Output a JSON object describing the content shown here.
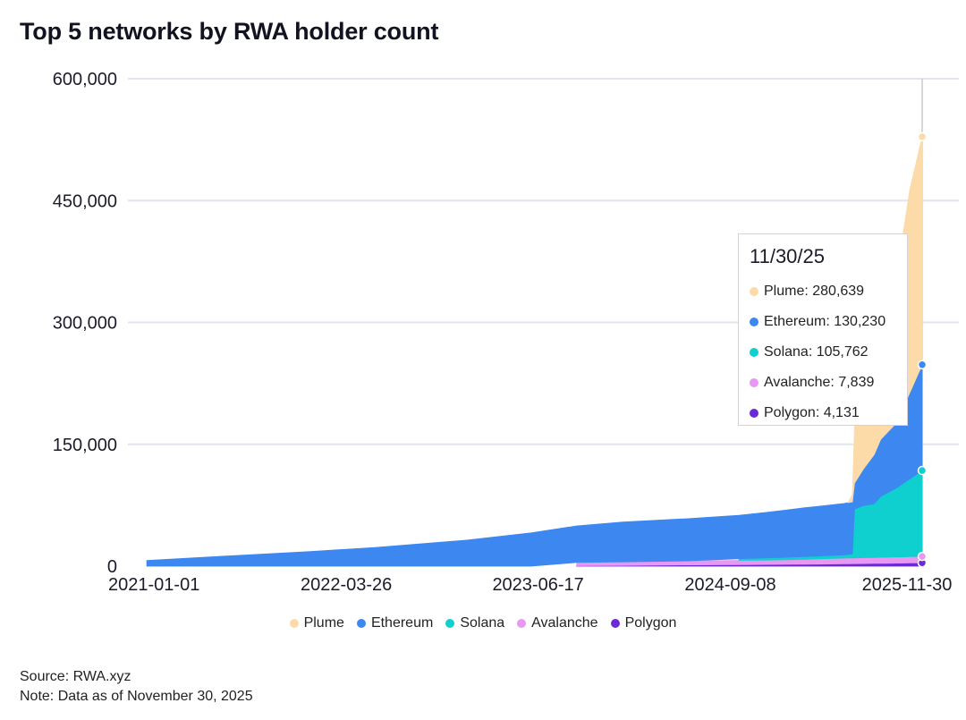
{
  "title": "Top 5 networks by RWA holder count",
  "source": "Source: RWA.xyz",
  "note": "Note: Data as of November 30, 2025",
  "colors": {
    "Plume": "#fcdba8",
    "Ethereum": "#3d87f0",
    "Solana": "#0fcfcf",
    "Avalanche": "#e898f2",
    "Polygon": "#6a2bd6",
    "grid": "#e2e4ee"
  },
  "legend": [
    "Plume",
    "Ethereum",
    "Solana",
    "Avalanche",
    "Polygon"
  ],
  "tooltip": {
    "date": "11/30/25",
    "rows": [
      {
        "series": "Plume",
        "text": "Plume: 280,639"
      },
      {
        "series": "Ethereum",
        "text": "Ethereum: 130,230"
      },
      {
        "series": "Solana",
        "text": "Solana: 105,762"
      },
      {
        "series": "Avalanche",
        "text": "Avalanche: 7,839"
      },
      {
        "series": "Polygon",
        "text": "Polygon: 4,131"
      }
    ]
  },
  "chart_data": {
    "type": "area",
    "stacked": true,
    "title": "Top 5 networks by RWA holder count",
    "x_range": [
      "2020-11-01",
      "2025-11-30"
    ],
    "ylim": [
      0,
      600000
    ],
    "yticks": [
      0,
      150000,
      300000,
      450000,
      600000
    ],
    "ytick_labels": [
      "0",
      "150,000",
      "300,000",
      "450,000",
      "600,000"
    ],
    "xticks": [
      "2021-01-01",
      "2022-03-26",
      "2023-06-17",
      "2024-09-08",
      "2025-11-30"
    ],
    "grid": true,
    "legend_position": "bottom",
    "series": [
      {
        "name": "Polygon",
        "points": [
          [
            "2023-09-15",
            500
          ],
          [
            "2024-06-01",
            1500
          ],
          [
            "2025-04-01",
            2500
          ],
          [
            "2025-11-30",
            4131
          ]
        ]
      },
      {
        "name": "Avalanche",
        "points": [
          [
            "2023-09-15",
            4000
          ],
          [
            "2024-06-01",
            5000
          ],
          [
            "2025-01-01",
            5500
          ],
          [
            "2025-06-01",
            7000
          ],
          [
            "2025-11-30",
            7839
          ]
        ]
      },
      {
        "name": "Solana",
        "points": [
          [
            "2024-09-28",
            2000
          ],
          [
            "2025-01-01",
            3000
          ],
          [
            "2025-06-01",
            4000
          ],
          [
            "2025-06-20",
            5000
          ],
          [
            "2025-06-25",
            60000
          ],
          [
            "2025-07-15",
            64000
          ],
          [
            "2025-08-10",
            66000
          ],
          [
            "2025-08-25",
            75000
          ],
          [
            "2025-10-01",
            85000
          ],
          [
            "2025-11-30",
            105762
          ]
        ]
      },
      {
        "name": "Ethereum",
        "points": [
          [
            "2020-12-15",
            7000
          ],
          [
            "2021-06-01",
            12000
          ],
          [
            "2022-01-01",
            18000
          ],
          [
            "2022-06-01",
            23000
          ],
          [
            "2023-01-01",
            32000
          ],
          [
            "2023-06-01",
            41000
          ],
          [
            "2023-09-15",
            45000
          ],
          [
            "2024-01-01",
            49000
          ],
          [
            "2024-06-01",
            52000
          ],
          [
            "2024-09-28",
            53500
          ],
          [
            "2024-12-01",
            56000
          ],
          [
            "2025-03-01",
            60000
          ],
          [
            "2025-06-20",
            64000
          ],
          [
            "2025-06-25",
            32000
          ],
          [
            "2025-08-25",
            70000
          ],
          [
            "2025-10-01",
            80000
          ],
          [
            "2025-11-30",
            130230
          ]
        ]
      },
      {
        "name": "Plume",
        "points": [
          [
            "2025-06-10",
            0
          ],
          [
            "2025-06-20",
            9000
          ],
          [
            "2025-06-25",
            70000
          ],
          [
            "2025-07-15",
            75000
          ],
          [
            "2025-08-10",
            90000
          ],
          [
            "2025-09-01",
            120000
          ],
          [
            "2025-09-20",
            150000
          ],
          [
            "2025-10-10",
            200000
          ],
          [
            "2025-11-01",
            250000
          ],
          [
            "2025-11-30",
            280639
          ]
        ]
      }
    ]
  }
}
